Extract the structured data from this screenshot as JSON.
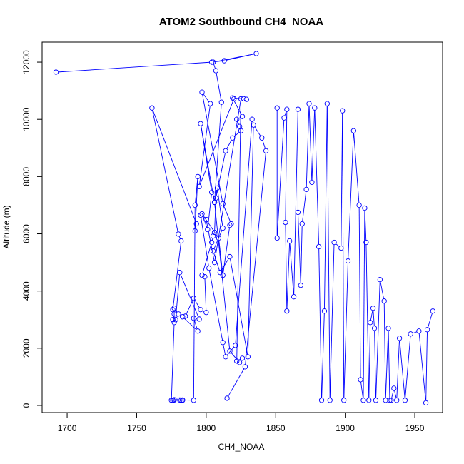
{
  "chart_data": {
    "type": "line",
    "title": "ATOM2 Southbound CH4_NOAA",
    "xlabel": "CH4_NOAA",
    "ylabel": "Altitude (m)",
    "xlim": [
      1682,
      1970
    ],
    "ylim": [
      -250,
      12700
    ],
    "xticks": [
      "1700",
      "1750",
      "1800",
      "1850",
      "1900",
      "1950"
    ],
    "yticks": [
      "0",
      "2000",
      "4000",
      "6000",
      "8000",
      "10000",
      "12000"
    ],
    "grid": false,
    "legend": "none",
    "colors": {
      "series": "#0000ff",
      "axes": "#000000"
    },
    "series": [
      {
        "marker": "open-circle",
        "x": [
          1692,
          1804,
          1813,
          1836,
          1805,
          1807,
          1811,
          1806,
          1796,
          1804,
          1801,
          1797,
          1809,
          1812,
          1817,
          1818,
          1812,
          1797,
          1803,
          1795,
          1820,
          1827,
          1829,
          1819,
          1826,
          1822,
          1824,
          1825,
          1819,
          1814,
          1807,
          1806,
          1805,
          1804,
          1797,
          1799,
          1800,
          1796,
          1791,
          1785,
          1783,
          1794,
          1791,
          1795,
          1781,
          1778,
          1780,
          1777,
          1777,
          1775,
          1776,
          1776,
          1776,
          1777,
          1777,
          1782,
          1783,
          1783,
          1781,
          1791,
          1792,
          1794,
          1792,
          1793,
          1761,
          1780,
          1782,
          1776,
          1777,
          1776
        ],
        "y": [
          11650,
          12000,
          12050,
          12300,
          12000,
          11700,
          10600,
          7100,
          9850,
          7450,
          6150,
          6700,
          5850,
          4550,
          6300,
          6350,
          7050,
          10950,
          10550,
          7650,
          10720,
          10720,
          10700,
          10750,
          10100,
          10000,
          9750,
          9600,
          9350,
          8900,
          7250,
          6050,
          5920,
          5700,
          4550,
          4500,
          3250,
          3350,
          3750,
          3120,
          3100,
          2600,
          3050,
          3020,
          4650,
          3000,
          3200,
          3400,
          2900,
          180,
          180,
          180,
          180,
          190,
          200,
          180,
          180,
          190,
          190,
          180,
          7000,
          8000,
          6100,
          6350,
          10400,
          5990,
          5750,
          3350,
          3200,
          3000
        ]
      },
      {
        "marker": "open-circle",
        "x": [
          1833,
          1821,
          1814,
          1812,
          1802,
          1796,
          1800,
          1806,
          1825,
          1822,
          1826,
          1824,
          1817,
          1806,
          1808,
          1812,
          1805,
          1810,
          1817,
          1830,
          1834,
          1840,
          1843,
          1828,
          1815
        ],
        "y": [
          10000,
          2100,
          1700,
          2200,
          4800,
          6650,
          6500,
          5000,
          10720,
          1550,
          1650,
          1500,
          1900,
          7100,
          7600,
          6200,
          5400,
          4650,
          5200,
          1700,
          9800,
          9350,
          8900,
          1350,
          250
        ]
      },
      {
        "marker": "open-circle",
        "x": [
          1851,
          1851,
          1856,
          1858,
          1857,
          1858,
          1860,
          1863,
          1866,
          1866,
          1868,
          1869,
          1872,
          1874,
          1876,
          1878,
          1881,
          1883,
          1885,
          1887,
          1889,
          1892,
          1897,
          1898,
          1899,
          1902,
          1906,
          1910,
          1911,
          1913,
          1914,
          1915,
          1917,
          1918,
          1920,
          1921,
          1922,
          1925,
          1928,
          1929,
          1931,
          1932,
          1933,
          1935,
          1937,
          1939,
          1943,
          1947,
          1953,
          1958,
          1959,
          1963
        ],
        "y": [
          10400,
          5850,
          10050,
          10350,
          6400,
          3300,
          5750,
          3800,
          10350,
          6750,
          4200,
          6350,
          7550,
          10550,
          7800,
          10400,
          5550,
          180,
          3300,
          10550,
          180,
          5700,
          5500,
          10300,
          180,
          5050,
          9600,
          7000,
          900,
          180,
          6900,
          5700,
          180,
          2900,
          3400,
          2700,
          180,
          4400,
          3650,
          180,
          2700,
          180,
          180,
          600,
          180,
          2350,
          180,
          2500,
          2600,
          90,
          2650,
          3300
        ]
      }
    ]
  }
}
